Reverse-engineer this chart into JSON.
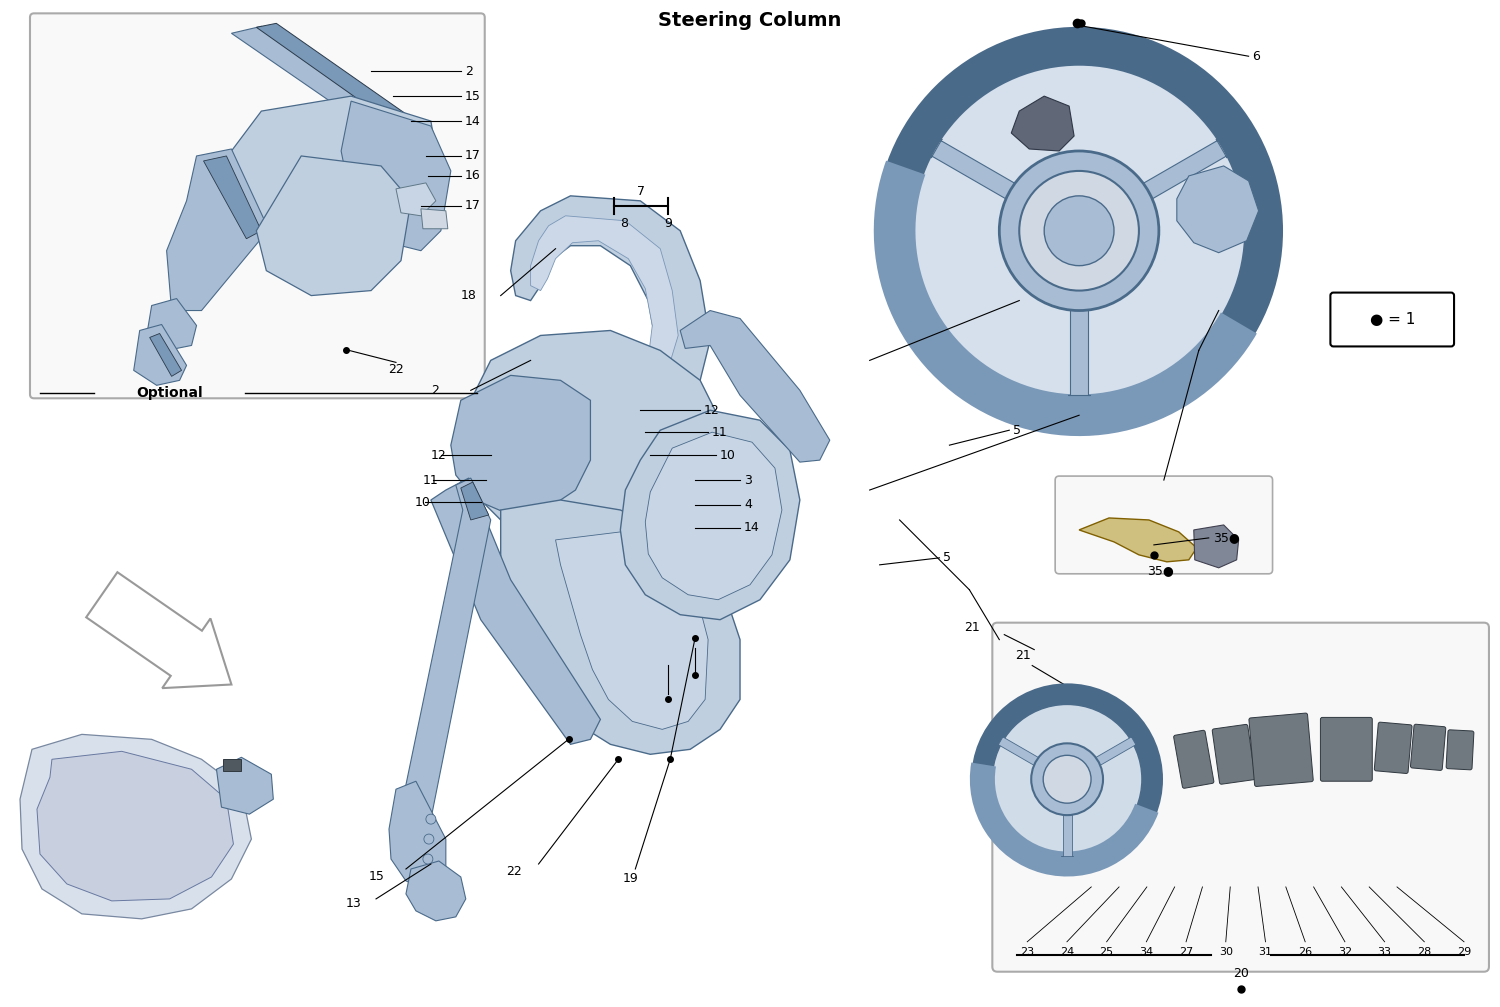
{
  "title": "Steering Column",
  "background_color": "#ffffff",
  "figure_size": [
    15.0,
    10.07
  ],
  "dpi": 100,
  "blue_light": "#bfcfe0",
  "blue_mid": "#a8bdd4",
  "blue_dark": "#7a98b8",
  "edge_color": "#4a6a8a",
  "edge_dark": "#2a3a4a",
  "text_color": "#000000",
  "legend_text": "● = 1",
  "optional_label": "Optional",
  "bottom_box_numbers": [
    "23",
    "24",
    "25",
    "34",
    "27",
    "30",
    "31",
    "26",
    "32",
    "33",
    "28",
    "29"
  ],
  "bottom_box_label": "20",
  "dot_bullet": "●"
}
